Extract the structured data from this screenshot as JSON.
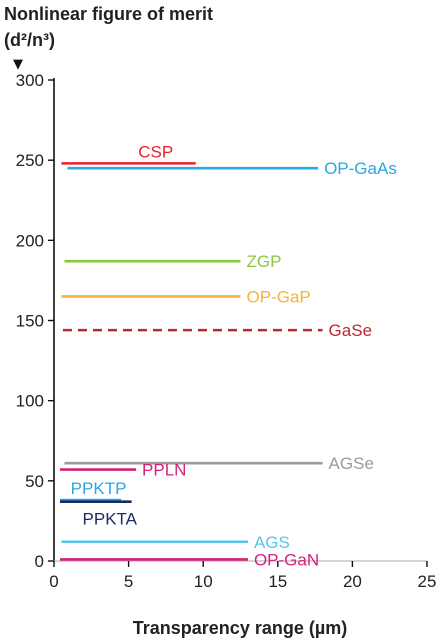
{
  "chart_data": {
    "type": "range",
    "title": "Nonlinear figure of merit",
    "ylabel_unit": "(d²/n³)",
    "xlabel": "Transparency range (µm)",
    "xlim": [
      0,
      25
    ],
    "ylim": [
      0,
      300
    ],
    "xticks": [
      0,
      5,
      10,
      15,
      20,
      25
    ],
    "yticks": [
      0,
      50,
      100,
      150,
      200,
      250,
      300
    ],
    "y_arrow_glyph": "▼",
    "grid": false,
    "series": [
      {
        "name": "CSP",
        "x_start": 0.5,
        "x_end": 9.5,
        "value": 248,
        "color": "#e8212b",
        "dashed": false,
        "label_pos": "above"
      },
      {
        "name": "OP-GaAs",
        "x_start": 0.9,
        "x_end": 17.7,
        "value": 245,
        "color": "#2aa8e0",
        "dashed": false,
        "label_pos": "right"
      },
      {
        "name": "ZGP",
        "x_start": 0.7,
        "x_end": 12.5,
        "value": 187,
        "color": "#8cc63f",
        "dashed": false,
        "label_pos": "right"
      },
      {
        "name": "OP-GaP",
        "x_start": 0.5,
        "x_end": 12.5,
        "value": 165,
        "color": "#f9b233",
        "dashed": false,
        "label_pos": "right"
      },
      {
        "name": "GaSe",
        "x_start": 0.6,
        "x_end": 18.0,
        "value": 144,
        "color": "#c0272d",
        "dashed": true,
        "label_pos": "right"
      },
      {
        "name": "AGSe",
        "x_start": 0.7,
        "x_end": 18.0,
        "value": 61,
        "color": "#9a9a9a",
        "dashed": false,
        "label_pos": "right"
      },
      {
        "name": "PPLN",
        "x_start": 0.4,
        "x_end": 5.5,
        "value": 57,
        "color": "#d4237a",
        "dashed": false,
        "label_pos": "right"
      },
      {
        "name": "PPKTP",
        "x_start": 0.4,
        "x_end": 4.5,
        "value": 38,
        "color": "#2aa8e0",
        "dashed": false,
        "label_pos": "above"
      },
      {
        "name": "PPKTA",
        "x_start": 0.4,
        "x_end": 5.2,
        "value": 37,
        "color": "#1b2a5e",
        "dashed": false,
        "label_pos": "below"
      },
      {
        "name": "AGS",
        "x_start": 0.5,
        "x_end": 13.0,
        "value": 12,
        "color": "#56c5e8",
        "dashed": false,
        "label_pos": "right"
      },
      {
        "name": "OP-GaN",
        "x_start": 0.4,
        "x_end": 13.0,
        "value": 1,
        "color": "#d4237a",
        "dashed": false,
        "label_pos": "right"
      }
    ]
  }
}
